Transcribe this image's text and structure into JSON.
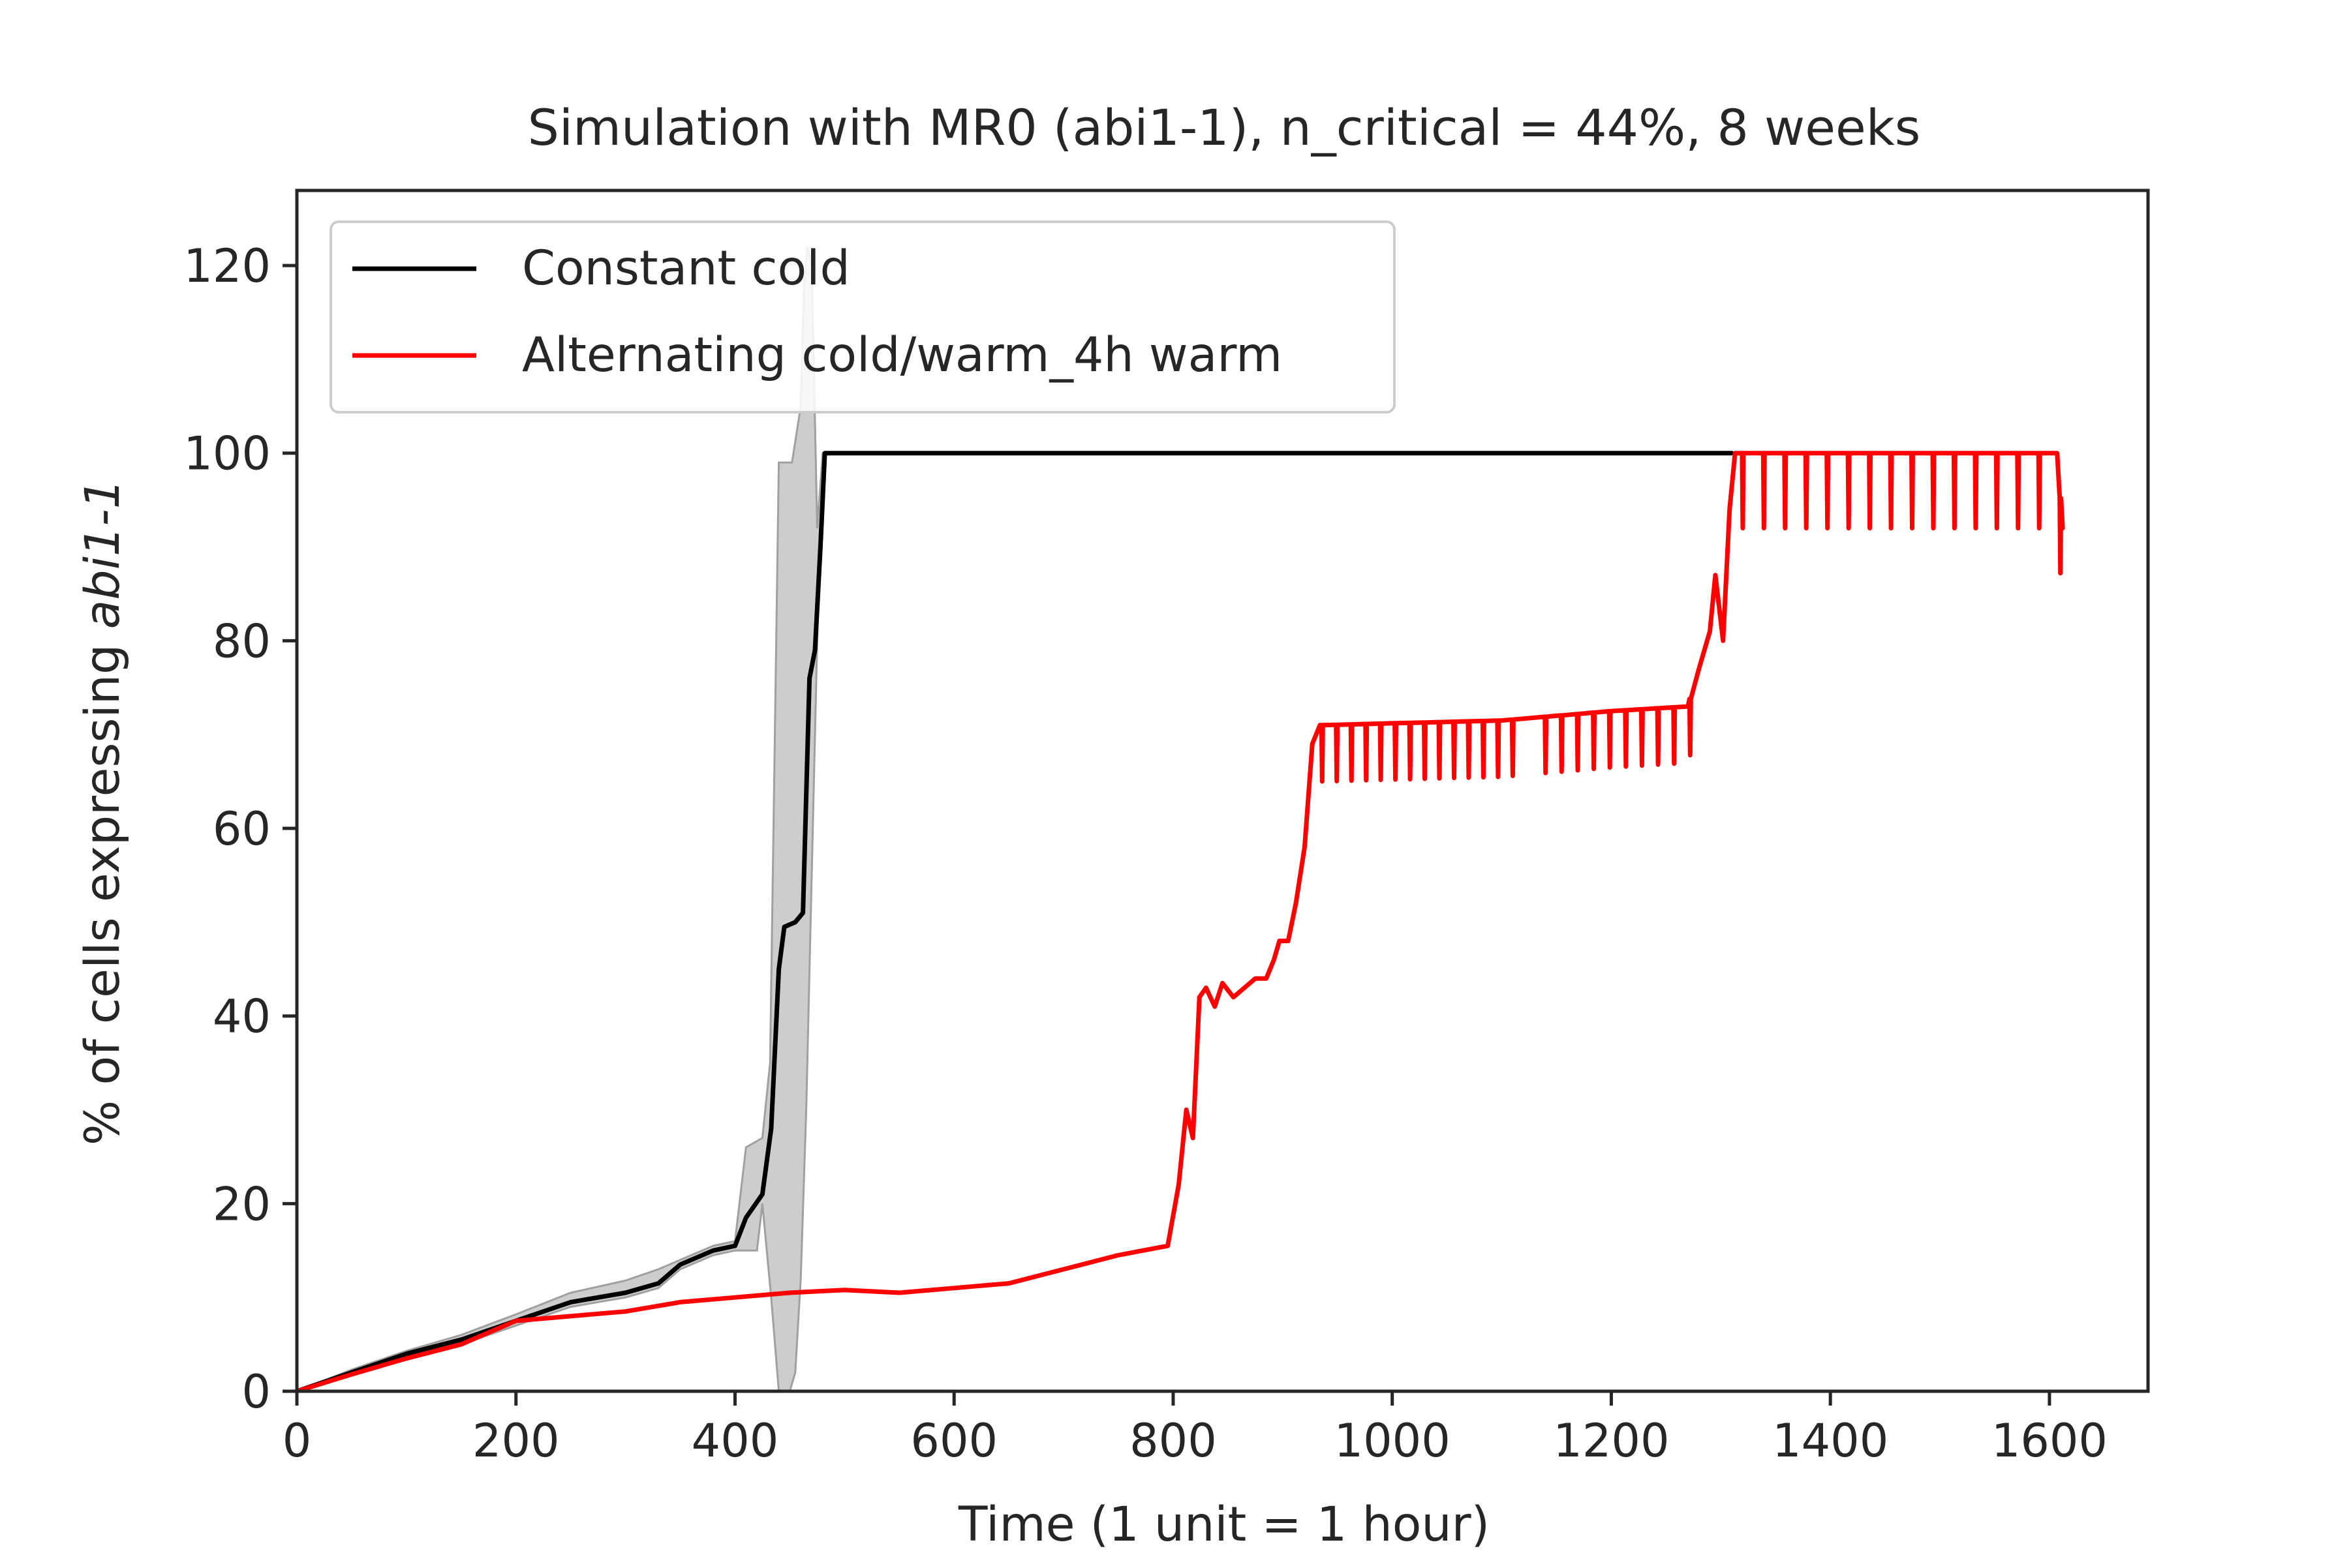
{
  "chart_data": {
    "type": "line",
    "title": "Simulation with MR0 (abi1-1), n_critical = 44%, 8 weeks",
    "xlabel": "Time (1 unit = 1 hour)",
    "ylabel_prefix": "% of cells expressing ",
    "ylabel_italic": "abi1-1",
    "xlim": [
      0,
      1690
    ],
    "ylim": [
      0,
      128
    ],
    "x_ticks": [
      0,
      200,
      400,
      600,
      800,
      1000,
      1200,
      1400,
      1600
    ],
    "y_ticks": [
      0,
      20,
      40,
      60,
      80,
      100,
      120
    ],
    "grid": false,
    "legend_position": "top-left",
    "series": [
      {
        "name": "Constant cold",
        "color": "#000000",
        "points": [
          [
            0,
            0
          ],
          [
            50,
            2
          ],
          [
            100,
            4
          ],
          [
            150,
            5.5
          ],
          [
            200,
            7.5
          ],
          [
            250,
            9.5
          ],
          [
            300,
            10.5
          ],
          [
            330,
            11.5
          ],
          [
            350,
            13.5
          ],
          [
            380,
            15
          ],
          [
            400,
            15.5
          ],
          [
            410,
            18.5
          ],
          [
            425,
            21
          ],
          [
            433,
            28
          ],
          [
            440,
            45
          ],
          [
            445,
            49.5
          ],
          [
            455,
            50
          ],
          [
            462,
            51
          ],
          [
            468,
            76
          ],
          [
            473,
            79
          ],
          [
            478,
            90
          ],
          [
            482,
            100
          ],
          [
            1310,
            100
          ]
        ],
        "band": {
          "color": "#c8c8c8",
          "upper": [
            [
              0,
              0
            ],
            [
              50,
              2.3
            ],
            [
              100,
              4.3
            ],
            [
              150,
              6
            ],
            [
              200,
              8.2
            ],
            [
              250,
              10.5
            ],
            [
              300,
              11.8
            ],
            [
              330,
              13
            ],
            [
              350,
              14
            ],
            [
              380,
              15.5
            ],
            [
              400,
              16
            ],
            [
              410,
              26
            ],
            [
              425,
              27
            ],
            [
              432,
              35
            ],
            [
              440,
              99
            ],
            [
              452,
              99
            ],
            [
              460,
              105
            ],
            [
              463,
              118
            ],
            [
              466,
              122
            ],
            [
              470,
              120
            ],
            [
              475,
              92
            ],
            [
              480,
              100
            ],
            [
              485,
              100
            ]
          ],
          "lower": [
            [
              485,
              100
            ],
            [
              480,
              100
            ],
            [
              475,
              80
            ],
            [
              470,
              55
            ],
            [
              465,
              30
            ],
            [
              460,
              12
            ],
            [
              455,
              2
            ],
            [
              450,
              0
            ],
            [
              440,
              0
            ],
            [
              433,
              10
            ],
            [
              425,
              20
            ],
            [
              420,
              15
            ],
            [
              410,
              15
            ],
            [
              400,
              15
            ],
            [
              380,
              14.5
            ],
            [
              350,
              13
            ],
            [
              330,
              11
            ],
            [
              300,
              10
            ],
            [
              250,
              9
            ],
            [
              200,
              7
            ],
            [
              150,
              5
            ],
            [
              100,
              3.7
            ],
            [
              50,
              1.7
            ],
            [
              0,
              0
            ]
          ]
        }
      },
      {
        "name": "Alternating cold/warm_4h warm",
        "color": "#ff0000",
        "points": [
          [
            0,
            0
          ],
          [
            50,
            1.8
          ],
          [
            100,
            3.5
          ],
          [
            150,
            5
          ],
          [
            200,
            7.5
          ],
          [
            250,
            8
          ],
          [
            300,
            8.5
          ],
          [
            350,
            9.5
          ],
          [
            400,
            10
          ],
          [
            450,
            10.5
          ],
          [
            500,
            10.8
          ],
          [
            550,
            10.5
          ],
          [
            600,
            11
          ],
          [
            650,
            11.5
          ],
          [
            700,
            13
          ],
          [
            750,
            14.5
          ],
          [
            795,
            15.5
          ],
          [
            805,
            22
          ],
          [
            812,
            30
          ],
          [
            818,
            27
          ],
          [
            824,
            42
          ],
          [
            830,
            43
          ],
          [
            838,
            41
          ],
          [
            845,
            43.5
          ],
          [
            855,
            42
          ],
          [
            865,
            43
          ],
          [
            875,
            44
          ],
          [
            885,
            44
          ],
          [
            892,
            46
          ],
          [
            897,
            48
          ],
          [
            905,
            48
          ],
          [
            912,
            52
          ],
          [
            920,
            58
          ],
          [
            927,
            69
          ],
          [
            934,
            71
          ],
          [
            1100,
            71.5
          ],
          [
            1150,
            72
          ],
          [
            1200,
            72.5
          ],
          [
            1270,
            73
          ],
          [
            1280,
            77
          ],
          [
            1290,
            81
          ],
          [
            1295,
            87
          ],
          [
            1302,
            80
          ],
          [
            1308,
            94
          ],
          [
            1313,
            100
          ],
          [
            1607,
            100
          ],
          [
            1612,
            92
          ]
        ],
        "dips": [
          {
            "start": 936,
            "end": 1110,
            "count": 14,
            "depth": 6
          },
          {
            "start": 1140,
            "end": 1272,
            "count": 10,
            "depth": 6
          },
          {
            "start": 1320,
            "end": 1610,
            "count": 16,
            "depth": 8
          }
        ]
      }
    ]
  }
}
